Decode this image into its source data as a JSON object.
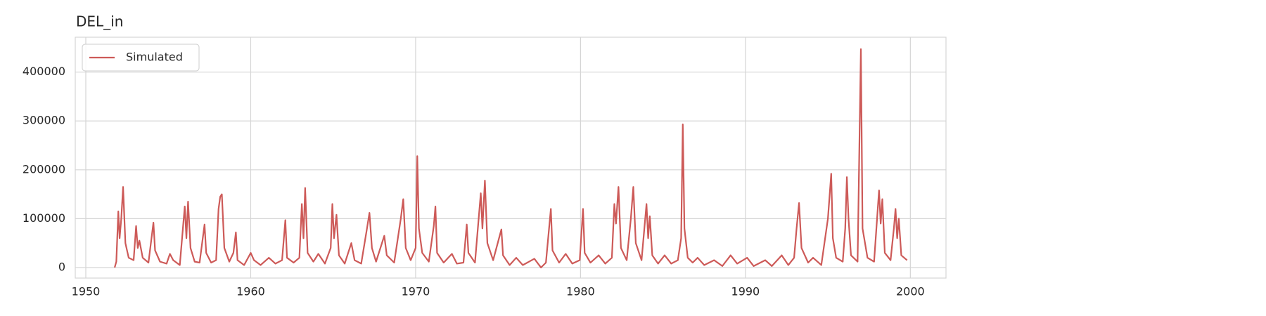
{
  "chart_data": {
    "type": "line",
    "title": "DEL_in",
    "x": [
      1951.75,
      1951.85,
      1951.97,
      1952.05,
      1952.15,
      1952.26,
      1952.4,
      1952.6,
      1952.9,
      1953.05,
      1953.15,
      1953.25,
      1953.45,
      1953.8,
      1954.1,
      1954.2,
      1954.5,
      1954.9,
      1955.1,
      1955.3,
      1955.7,
      1956.0,
      1956.1,
      1956.2,
      1956.35,
      1956.6,
      1956.9,
      1957.2,
      1957.3,
      1957.6,
      1957.9,
      1958.05,
      1958.15,
      1958.25,
      1958.4,
      1958.7,
      1958.95,
      1959.1,
      1959.2,
      1959.6,
      1960.0,
      1960.2,
      1960.6,
      1961.1,
      1961.5,
      1961.9,
      1962.1,
      1962.2,
      1962.6,
      1962.95,
      1963.1,
      1963.2,
      1963.3,
      1963.45,
      1963.8,
      1964.1,
      1964.5,
      1964.85,
      1964.95,
      1965.05,
      1965.2,
      1965.35,
      1965.7,
      1966.1,
      1966.3,
      1966.7,
      1967.05,
      1967.2,
      1967.35,
      1967.6,
      1968.1,
      1968.25,
      1968.7,
      1969.1,
      1969.25,
      1969.4,
      1969.7,
      1970.0,
      1970.1,
      1970.2,
      1970.4,
      1970.8,
      1971.1,
      1971.2,
      1971.3,
      1971.7,
      1972.2,
      1972.5,
      1972.9,
      1973.1,
      1973.2,
      1973.6,
      1973.95,
      1974.05,
      1974.2,
      1974.35,
      1974.7,
      1975.2,
      1975.3,
      1975.7,
      1976.1,
      1976.5,
      1977.2,
      1977.6,
      1977.9,
      1978.2,
      1978.3,
      1978.7,
      1979.1,
      1979.5,
      1979.95,
      1980.15,
      1980.25,
      1980.6,
      1981.1,
      1981.5,
      1981.9,
      1982.05,
      1982.15,
      1982.3,
      1982.45,
      1982.8,
      1983.05,
      1983.2,
      1983.35,
      1983.7,
      1984.0,
      1984.1,
      1984.2,
      1984.35,
      1984.7,
      1985.1,
      1985.5,
      1985.9,
      1986.1,
      1986.2,
      1986.3,
      1986.5,
      1986.8,
      1987.1,
      1987.5,
      1988.1,
      1988.6,
      1989.1,
      1989.5,
      1990.1,
      1990.5,
      1991.2,
      1991.6,
      1992.2,
      1992.6,
      1992.95,
      1993.1,
      1993.25,
      1993.4,
      1993.8,
      1994.1,
      1994.6,
      1995.0,
      1995.2,
      1995.3,
      1995.5,
      1995.9,
      1996.05,
      1996.15,
      1996.25,
      1996.4,
      1996.8,
      1997.0,
      1997.1,
      1997.2,
      1997.4,
      1997.8,
      1998.1,
      1998.2,
      1998.3,
      1998.45,
      1998.8,
      1999.0,
      1999.1,
      1999.2,
      1999.3,
      1999.45,
      1999.8
    ],
    "series": [
      {
        "name": "Simulated",
        "color": "#cd5a58",
        "values": [
          0,
          12000,
          115000,
          60000,
          100000,
          165000,
          50000,
          20000,
          15000,
          85000,
          40000,
          55000,
          20000,
          10000,
          92000,
          35000,
          12000,
          8000,
          28000,
          15000,
          5000,
          125000,
          60000,
          135000,
          40000,
          12000,
          10000,
          88000,
          30000,
          10000,
          15000,
          120000,
          145000,
          150000,
          40000,
          12000,
          30000,
          72000,
          15000,
          5000,
          30000,
          15000,
          5000,
          20000,
          8000,
          15000,
          97000,
          20000,
          10000,
          20000,
          130000,
          60000,
          163000,
          30000,
          12000,
          28000,
          8000,
          40000,
          130000,
          60000,
          108000,
          25000,
          8000,
          50000,
          15000,
          8000,
          80000,
          112000,
          40000,
          12000,
          65000,
          25000,
          10000,
          100000,
          140000,
          40000,
          15000,
          40000,
          228000,
          80000,
          30000,
          12000,
          85000,
          125000,
          30000,
          10000,
          28000,
          8000,
          10000,
          88000,
          30000,
          10000,
          152000,
          80000,
          178000,
          50000,
          15000,
          78000,
          25000,
          5000,
          20000,
          5000,
          18000,
          0,
          10000,
          120000,
          35000,
          10000,
          28000,
          8000,
          15000,
          120000,
          30000,
          10000,
          25000,
          8000,
          20000,
          130000,
          90000,
          165000,
          40000,
          15000,
          100000,
          165000,
          50000,
          15000,
          130000,
          60000,
          105000,
          25000,
          8000,
          25000,
          8000,
          15000,
          60000,
          293000,
          80000,
          20000,
          10000,
          20000,
          5000,
          15000,
          3000,
          25000,
          8000,
          20000,
          3000,
          15000,
          3000,
          25000,
          5000,
          20000,
          80000,
          132000,
          40000,
          10000,
          20000,
          5000,
          100000,
          192000,
          60000,
          20000,
          12000,
          80000,
          185000,
          100000,
          25000,
          12000,
          447000,
          80000,
          60000,
          20000,
          12000,
          158000,
          90000,
          140000,
          30000,
          15000,
          80000,
          120000,
          60000,
          100000,
          25000,
          15000
        ]
      }
    ],
    "xlim": [
      1949.36,
      2002.16
    ],
    "xticks": [
      1950,
      1960,
      1970,
      1980,
      1990,
      2000
    ],
    "ylim": [
      -21600,
      471400
    ],
    "yticks": [
      0,
      100000,
      200000,
      300000,
      400000
    ],
    "grid": true,
    "legend": "upper left"
  }
}
